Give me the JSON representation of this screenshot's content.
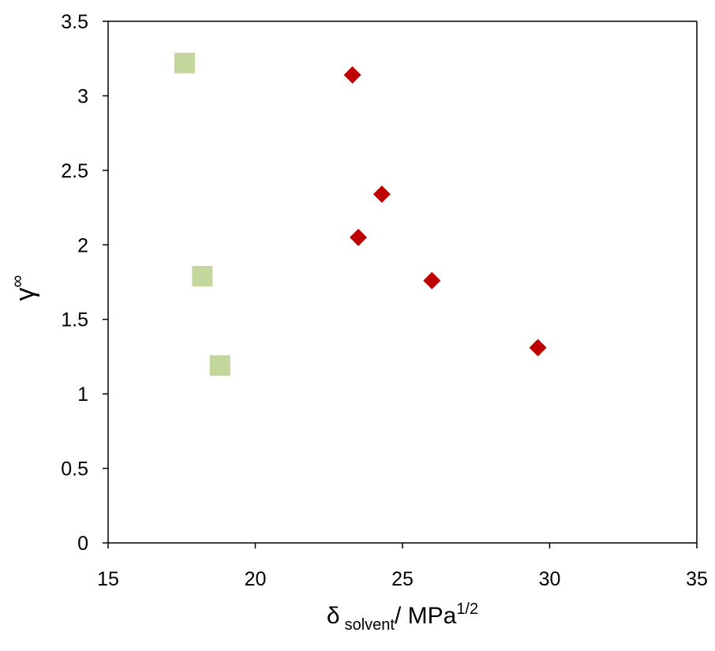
{
  "chart_data": {
    "type": "scatter",
    "title": "",
    "xlabel": {
      "main": "δ",
      "subscript": "solvent",
      "suffix": "/ MPa",
      "superscript": "1/2"
    },
    "ylabel": {
      "main": "γ",
      "superscript": "∞"
    },
    "xlim": [
      15,
      35
    ],
    "ylim": [
      0,
      3.5
    ],
    "xticks": [
      "15",
      "20",
      "25",
      "30",
      "35"
    ],
    "yticks": [
      "0",
      "0.5",
      "1",
      "1.5",
      "2",
      "2.5",
      "3",
      "3.5"
    ],
    "grid": false,
    "legend": "none",
    "series": [
      {
        "marker": "square",
        "color": "#c3d69b",
        "points": [
          {
            "x": 17.6,
            "y": 3.22
          },
          {
            "x": 18.2,
            "y": 1.79
          },
          {
            "x": 18.8,
            "y": 1.19
          }
        ]
      },
      {
        "marker": "diamond",
        "color": "#c00000",
        "points": [
          {
            "x": 23.3,
            "y": 3.14
          },
          {
            "x": 24.3,
            "y": 2.34
          },
          {
            "x": 23.5,
            "y": 2.05
          },
          {
            "x": 26.0,
            "y": 1.76
          },
          {
            "x": 29.6,
            "y": 1.31
          }
        ]
      }
    ]
  }
}
